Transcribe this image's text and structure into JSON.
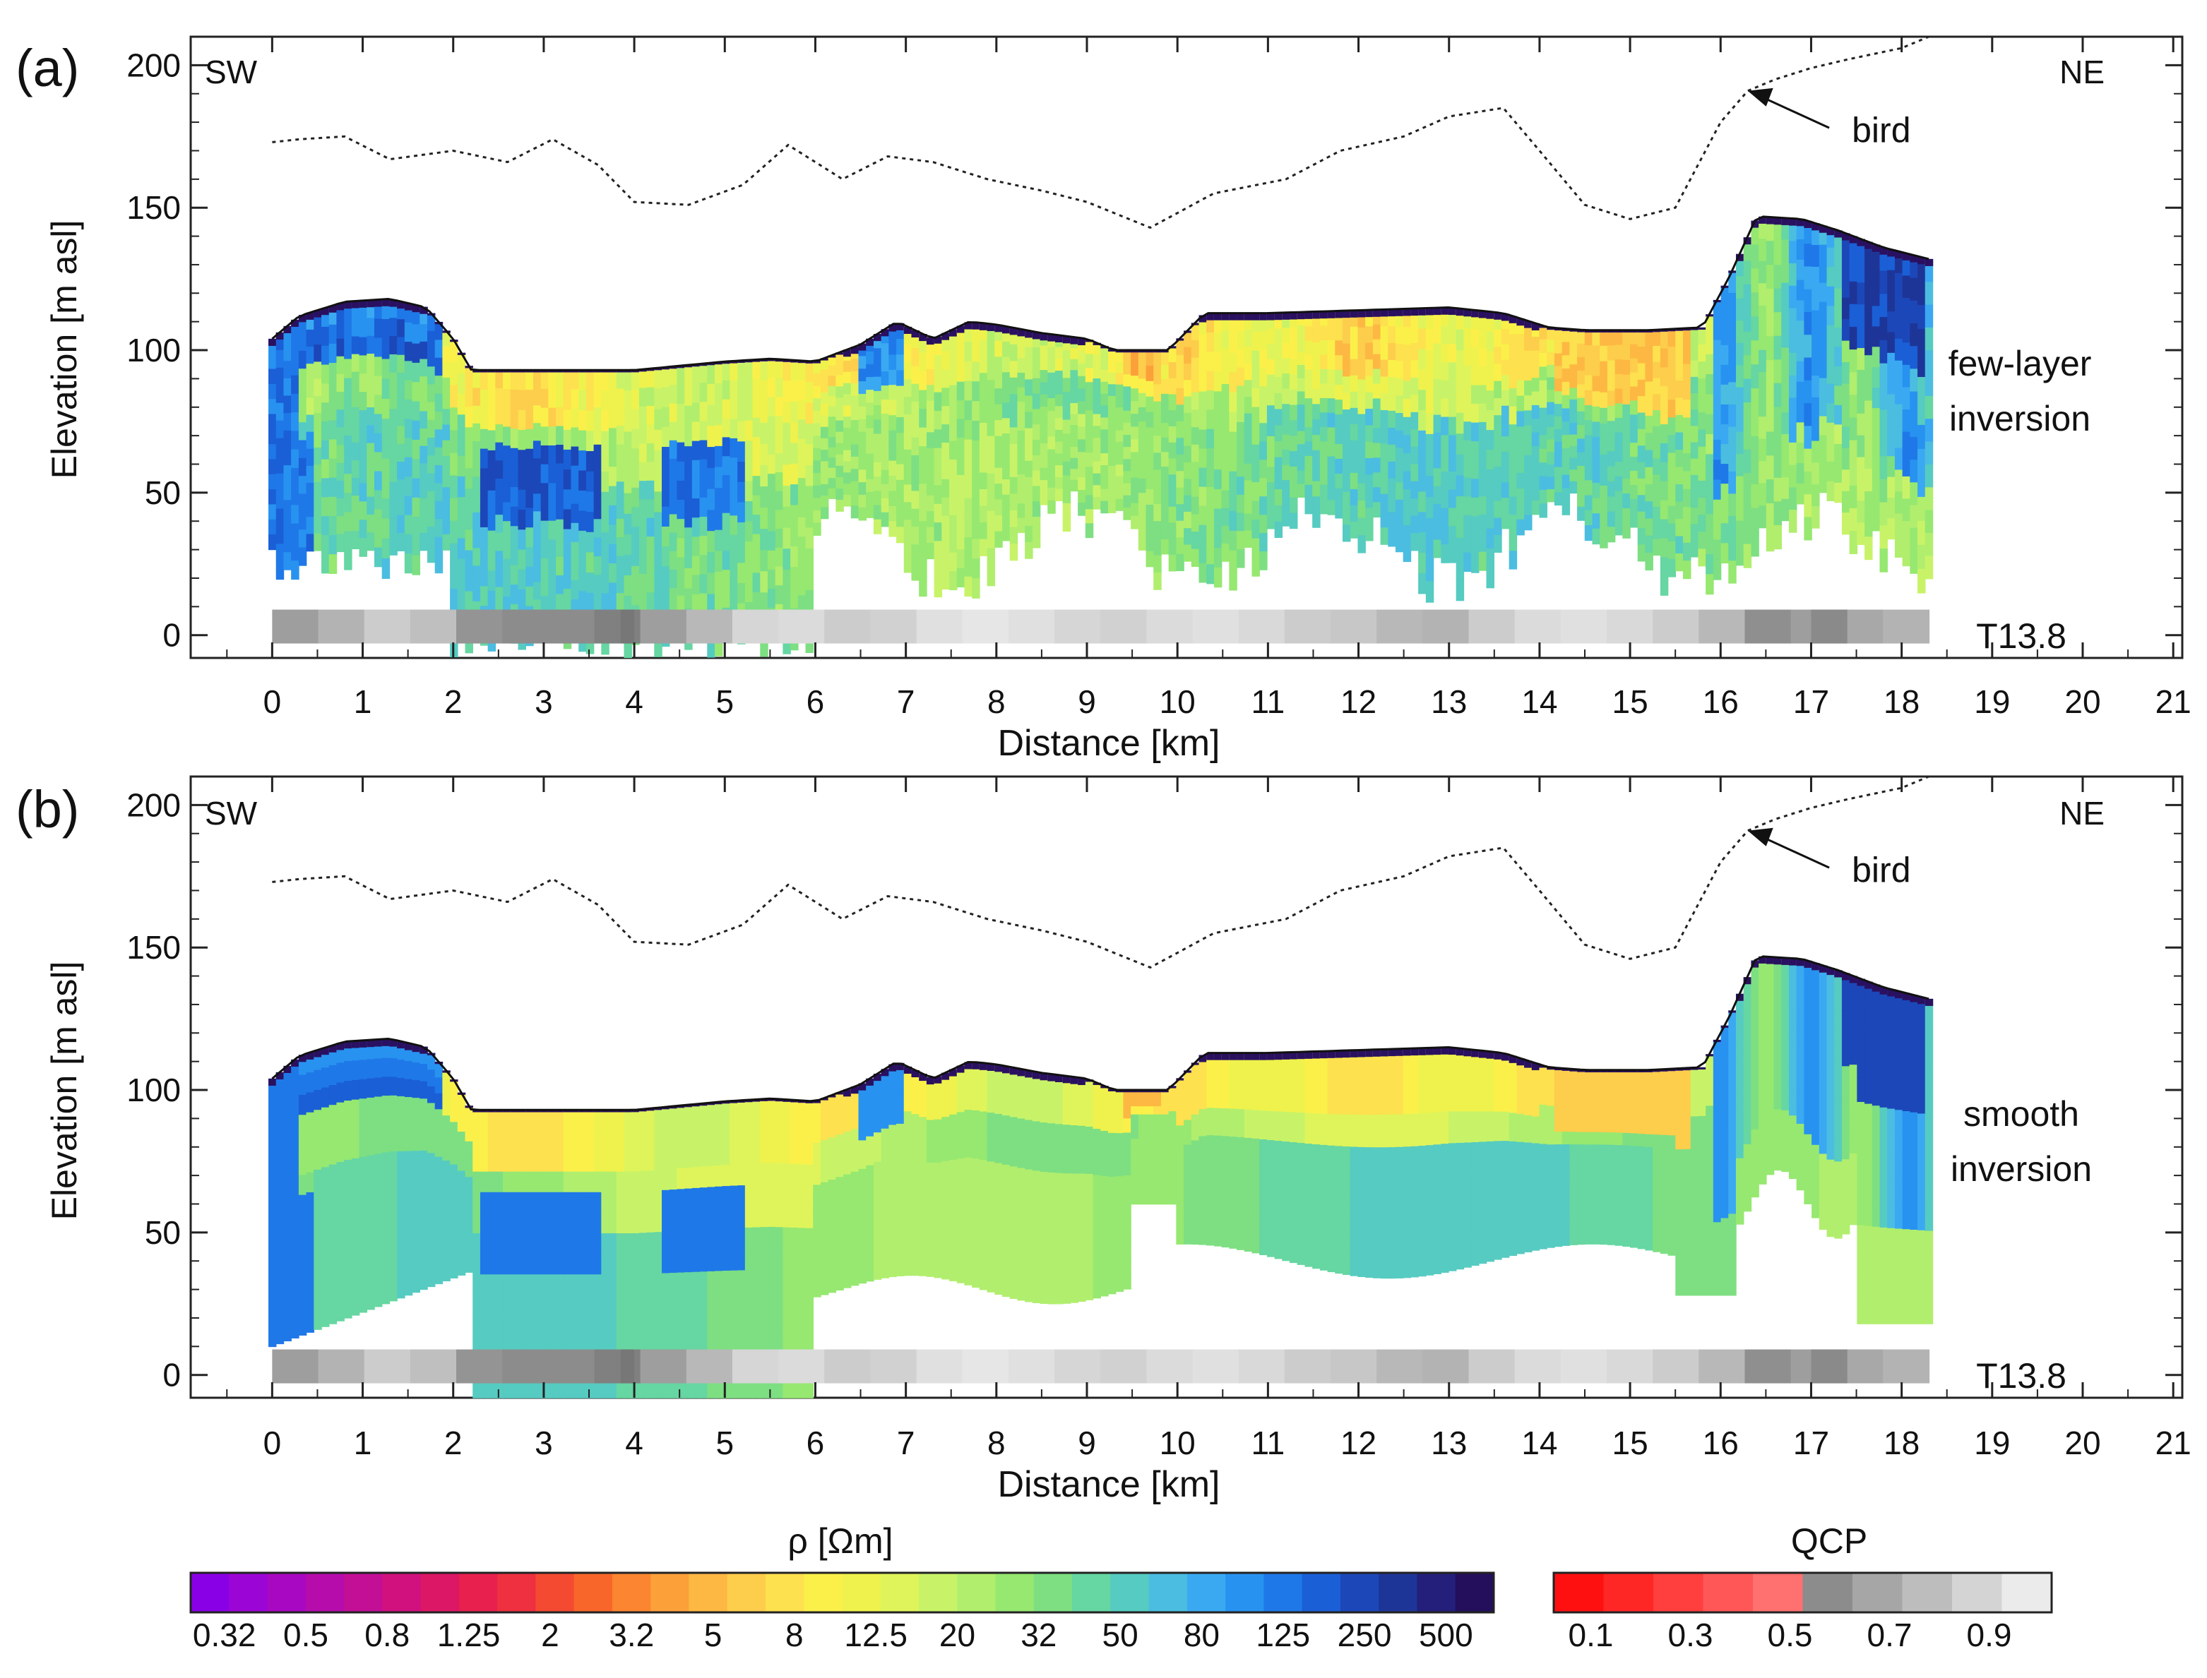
{
  "chart_data": [
    {
      "type": "resistivity-section",
      "panel_label": "(a)",
      "title": "",
      "xlabel": "Distance [km]",
      "ylabel": "Elevation [m asl]",
      "xlim": [
        -0.9,
        21.1
      ],
      "ylim": [
        -8,
        210
      ],
      "xticks": [
        "0",
        "1",
        "2",
        "3",
        "4",
        "5",
        "6",
        "7",
        "8",
        "9",
        "10",
        "11",
        "12",
        "13",
        "14",
        "15",
        "16",
        "17",
        "18",
        "19",
        "20",
        "21"
      ],
      "yticks": [
        "0",
        "50",
        "100",
        "150",
        "200"
      ],
      "corner_left": "SW",
      "corner_right": "NE",
      "annotation_bird": "bird",
      "method_line1": "few-layer",
      "method_line2": "inversion",
      "line_id": "T13.8",
      "bird_altitude": {
        "x": [
          0,
          0.3,
          0.8,
          1.3,
          2.0,
          2.6,
          3.1,
          3.6,
          4.0,
          4.6,
          5.2,
          5.7,
          6.3,
          6.8,
          7.3,
          7.9,
          8.5,
          9.0,
          9.7,
          10.4,
          11.2,
          11.8,
          12.5,
          13.0,
          13.6,
          14.0,
          14.5,
          15.0,
          15.5,
          16.0,
          16.3,
          16.6,
          17.0,
          17.4,
          18.0,
          18.3
        ],
        "y": [
          173,
          174,
          175,
          167,
          170,
          166,
          174,
          165,
          152,
          151,
          158,
          172,
          160,
          168,
          166,
          160,
          156,
          152,
          143,
          155,
          160,
          170,
          175,
          182,
          185,
          170,
          151,
          146,
          150,
          180,
          191,
          195,
          199,
          202,
          206,
          210
        ]
      },
      "surface": {
        "x": [
          0,
          0.3,
          0.8,
          1.3,
          1.7,
          2.0,
          2.2,
          3,
          4,
          5,
          5.5,
          6,
          6.5,
          6.9,
          7.3,
          7.7,
          8,
          8.5,
          9,
          9.3,
          9.6,
          9.9,
          10.3,
          11,
          12,
          13,
          13.6,
          14.1,
          14.5,
          15.2,
          15.8,
          16.1,
          16.4,
          16.9,
          17.3,
          17.8,
          18.3
        ],
        "y": [
          104,
          112,
          117,
          118,
          115,
          104,
          93,
          93,
          93,
          96,
          97,
          96,
          102,
          110,
          104,
          110,
          109,
          106,
          104,
          100,
          100,
          100,
          113,
          113,
          114,
          115,
          113,
          108,
          107,
          107,
          108,
          126,
          147,
          146,
          142,
          136,
          132
        ]
      },
      "qcp_strip": [
        0.62,
        0.7,
        0.8,
        0.75,
        0.58,
        0.55,
        0.55,
        0.5,
        0.62,
        0.72,
        0.84,
        0.86,
        0.8,
        0.82,
        0.88,
        0.9,
        0.88,
        0.84,
        0.82,
        0.86,
        0.88,
        0.85,
        0.8,
        0.78,
        0.72,
        0.7,
        0.8,
        0.86,
        0.88,
        0.85,
        0.8,
        0.72,
        0.56,
        0.62,
        0.66,
        0.7
      ]
    },
    {
      "type": "resistivity-section",
      "panel_label": "(b)",
      "title": "",
      "xlabel": "Distance [km]",
      "ylabel": "Elevation [m asl]",
      "xlim": [
        -0.9,
        21.1
      ],
      "ylim": [
        -8,
        210
      ],
      "xticks": [
        "0",
        "1",
        "2",
        "3",
        "4",
        "5",
        "6",
        "7",
        "8",
        "9",
        "10",
        "11",
        "12",
        "13",
        "14",
        "15",
        "16",
        "17",
        "18",
        "19",
        "20",
        "21"
      ],
      "yticks": [
        "0",
        "50",
        "100",
        "150",
        "200"
      ],
      "corner_left": "SW",
      "corner_right": "NE",
      "annotation_bird": "bird",
      "method_line1": "smooth",
      "method_line2": "inversion",
      "line_id": "T13.8",
      "bird_altitude": {
        "x": [
          0,
          0.3,
          0.8,
          1.3,
          2.0,
          2.6,
          3.1,
          3.6,
          4.0,
          4.6,
          5.2,
          5.7,
          6.3,
          6.8,
          7.3,
          7.9,
          8.5,
          9.0,
          9.7,
          10.4,
          11.2,
          11.8,
          12.5,
          13.0,
          13.6,
          14.0,
          14.5,
          15.0,
          15.5,
          16.0,
          16.3,
          16.6,
          17.0,
          17.4,
          18.0,
          18.3
        ],
        "y": [
          173,
          174,
          175,
          167,
          170,
          166,
          174,
          165,
          152,
          151,
          158,
          172,
          160,
          168,
          166,
          160,
          156,
          152,
          143,
          155,
          160,
          170,
          175,
          182,
          185,
          170,
          151,
          146,
          150,
          180,
          191,
          195,
          199,
          202,
          206,
          210
        ]
      },
      "surface": {
        "x": [
          0,
          0.3,
          0.8,
          1.3,
          1.7,
          2.0,
          2.2,
          3,
          4,
          5,
          5.5,
          6,
          6.5,
          6.9,
          7.3,
          7.7,
          8,
          8.5,
          9,
          9.3,
          9.6,
          9.9,
          10.3,
          11,
          12,
          13,
          13.6,
          14.1,
          14.5,
          15.2,
          15.8,
          16.1,
          16.4,
          16.9,
          17.3,
          17.8,
          18.3
        ],
        "y": [
          104,
          112,
          117,
          118,
          115,
          104,
          93,
          93,
          93,
          96,
          97,
          96,
          102,
          110,
          104,
          110,
          109,
          106,
          104,
          100,
          100,
          100,
          113,
          113,
          114,
          115,
          113,
          108,
          107,
          107,
          108,
          126,
          147,
          146,
          142,
          136,
          132
        ]
      },
      "qcp_strip": [
        0.62,
        0.7,
        0.8,
        0.75,
        0.58,
        0.55,
        0.55,
        0.5,
        0.62,
        0.72,
        0.84,
        0.86,
        0.8,
        0.82,
        0.88,
        0.9,
        0.88,
        0.84,
        0.82,
        0.86,
        0.88,
        0.85,
        0.8,
        0.78,
        0.72,
        0.7,
        0.8,
        0.86,
        0.88,
        0.85,
        0.8,
        0.72,
        0.56,
        0.62,
        0.66,
        0.7
      ]
    }
  ],
  "colorbar_rho": {
    "label": "ρ [Ωm]",
    "ticks": [
      "0.32",
      "0.5",
      "0.8",
      "1.25",
      "2",
      "3.2",
      "5",
      "8",
      "12.5",
      "20",
      "32",
      "50",
      "80",
      "125",
      "250",
      "500"
    ],
    "colors": [
      "#8a00e6",
      "#9b05d6",
      "#a908c2",
      "#b60cac",
      "#c30e96",
      "#d0117e",
      "#dc1766",
      "#e7204e",
      "#ee3040",
      "#f44a32",
      "#f8662a",
      "#fb8530",
      "#fca03a",
      "#fdb843",
      "#fdcd4c",
      "#fde14f",
      "#fbf04a",
      "#eff24c",
      "#dff45a",
      "#c8f368",
      "#b1ee6d",
      "#96e870",
      "#7ddf82",
      "#66d6a2",
      "#56cbc1",
      "#4bbde0",
      "#3aa9f2",
      "#2892f0",
      "#1f78e8",
      "#1a5fd6",
      "#1c47b8",
      "#1e3598",
      "#231f7a",
      "#230f5c"
    ]
  },
  "colorbar_qcp": {
    "label": "QCP",
    "ticks": [
      "0.1",
      "0.3",
      "0.5",
      "0.7",
      "0.9"
    ],
    "colors": [
      "#ff1010",
      "#ff2626",
      "#ff3e3e",
      "#ff5757",
      "#ff7070",
      "#8c8c8c",
      "#a6a6a6",
      "#bdbdbd",
      "#d4d4d4",
      "#ebebeb"
    ]
  }
}
